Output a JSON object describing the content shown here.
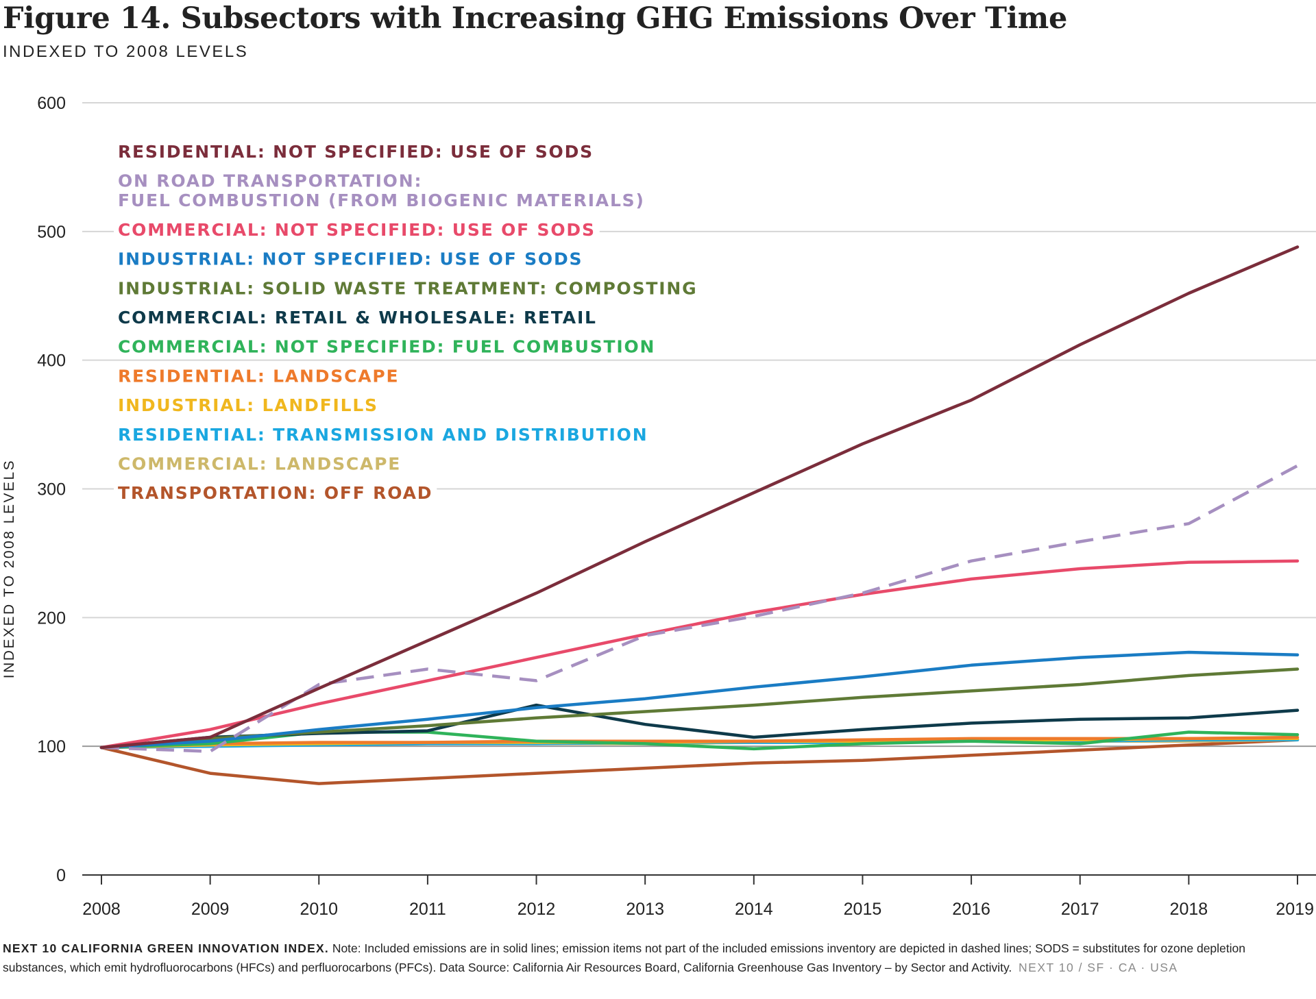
{
  "title": "Figure 14. Subsectors with Increasing GHG Emissions Over Time",
  "subtitle": "INDEXED TO 2008 LEVELS",
  "footnote": {
    "brand": "NEXT 10 CALIFORNIA GREEN INNOVATION INDEX.",
    "text": " Note: Included emissions are in solid lines; emission items not part of the included emissions inventory are depicted in dashed lines; SODS = substitutes for ozone depletion substances, which emit hydrofluorocarbons (HFCs) and perfluorocarbons (PFCs). Data Source: California Air Resources Board, California Greenhouse Gas Inventory – by Sector and Activity.",
    "tag": "NEXT 10  /  SF · CA · USA"
  },
  "chart_data": {
    "type": "line",
    "title": "Figure 14. Subsectors with Increasing GHG Emissions Over Time",
    "subtitle": "INDEXED TO 2008 LEVELS",
    "ylabel": "INDEXED TO 2008 LEVELS",
    "xlabel": "",
    "ylim": [
      0,
      600
    ],
    "yticks": [
      0,
      100,
      200,
      300,
      400,
      500,
      600
    ],
    "grid": true,
    "legend_position": "top-left",
    "x": [
      2008,
      2009,
      2010,
      2011,
      2012,
      2013,
      2014,
      2015,
      2016,
      2017,
      2018,
      2019
    ],
    "series": [
      {
        "name": "RESIDENTIAL: NOT SPECIFIED: USE OF SODS",
        "color": "#7b2d3b",
        "dashed": false,
        "values": [
          99,
          107,
          145,
          182,
          219,
          259,
          297,
          335,
          369,
          412,
          452,
          488
        ]
      },
      {
        "name": "ON ROAD TRANSPORTATION: FUEL COMBUSTION (FROM BIOGENIC MATERIALS)",
        "color": "#a68fc0",
        "dashed": true,
        "values": [
          99,
          96,
          148,
          160,
          151,
          186,
          201,
          219,
          244,
          259,
          273,
          318
        ]
      },
      {
        "name": "COMMERCIAL: NOT SPECIFIED: USE OF SODS",
        "color": "#e84a6a",
        "dashed": false,
        "values": [
          99,
          113,
          133,
          151,
          169,
          187,
          204,
          218,
          230,
          238,
          243,
          244
        ]
      },
      {
        "name": "INDUSTRIAL: NOT SPECIFIED: USE OF SODS",
        "color": "#1a7cc4",
        "dashed": false,
        "values": [
          99,
          104,
          113,
          121,
          130,
          137,
          146,
          154,
          163,
          169,
          173,
          171
        ]
      },
      {
        "name": "INDUSTRIAL: SOLID WASTE TREATMENT: COMPOSTING",
        "color": "#5f7a36",
        "dashed": false,
        "values": [
          99,
          106,
          111,
          116,
          122,
          127,
          132,
          138,
          143,
          148,
          155,
          160
        ]
      },
      {
        "name": "COMMERCIAL: RETAIL & WHOLESALE: RETAIL",
        "color": "#0e3a4a",
        "dashed": false,
        "values": [
          99,
          107,
          110,
          112,
          132,
          117,
          107,
          113,
          118,
          121,
          122,
          128
        ]
      },
      {
        "name": "COMMERCIAL: NOT SPECIFIED: FUEL COMBUSTION",
        "color": "#2fb35a",
        "dashed": false,
        "values": [
          99,
          102,
          111,
          111,
          104,
          102,
          98,
          102,
          104,
          102,
          111,
          109
        ]
      },
      {
        "name": "RESIDENTIAL: LANDSCAPE",
        "color": "#ee7a2b",
        "dashed": false,
        "values": [
          99,
          102,
          103,
          103,
          104,
          104,
          104,
          105,
          106,
          106,
          106,
          107
        ]
      },
      {
        "name": "INDUSTRIAL: LANDFILLS",
        "color": "#f0b71e",
        "dashed": false,
        "values": [
          99,
          101,
          102,
          103,
          103,
          103,
          104,
          104,
          105,
          105,
          106,
          106
        ]
      },
      {
        "name": "RESIDENTIAL: TRANSMISSION AND DISTRIBUTION",
        "color": "#1aa7e0",
        "dashed": false,
        "values": [
          99,
          100,
          101,
          102,
          102,
          103,
          103,
          103,
          104,
          104,
          105,
          105
        ]
      },
      {
        "name": "COMMERCIAL: LANDSCAPE",
        "color": "#cdb86a",
        "dashed": false,
        "values": [
          99,
          101,
          101,
          102,
          102,
          102,
          103,
          103,
          104,
          104,
          104,
          105
        ]
      },
      {
        "name": "TRANSPORTATION: OFF ROAD",
        "color": "#b3552b",
        "dashed": false,
        "values": [
          99,
          79,
          71,
          75,
          79,
          83,
          87,
          89,
          93,
          97,
          101,
          105
        ]
      }
    ],
    "legend_lines": [
      [
        "RESIDENTIAL: NOT SPECIFIED: USE OF SODS"
      ],
      [
        "ON ROAD TRANSPORTATION:",
        "FUEL COMBUSTION (FROM BIOGENIC MATERIALS)"
      ],
      [
        "COMMERCIAL: NOT SPECIFIED: USE OF SODS"
      ],
      [
        "INDUSTRIAL: NOT SPECIFIED: USE OF SODS"
      ],
      [
        "INDUSTRIAL: SOLID WASTE TREATMENT: COMPOSTING"
      ],
      [
        "COMMERCIAL: RETAIL & WHOLESALE: RETAIL"
      ],
      [
        "COMMERCIAL: NOT SPECIFIED: FUEL COMBUSTION"
      ],
      [
        "RESIDENTIAL: LANDSCAPE"
      ],
      [
        "INDUSTRIAL: LANDFILLS"
      ],
      [
        "RESIDENTIAL: TRANSMISSION AND DISTRIBUTION"
      ],
      [
        "COMMERCIAL: LANDSCAPE"
      ],
      [
        "TRANSPORTATION: OFF ROAD"
      ]
    ]
  }
}
